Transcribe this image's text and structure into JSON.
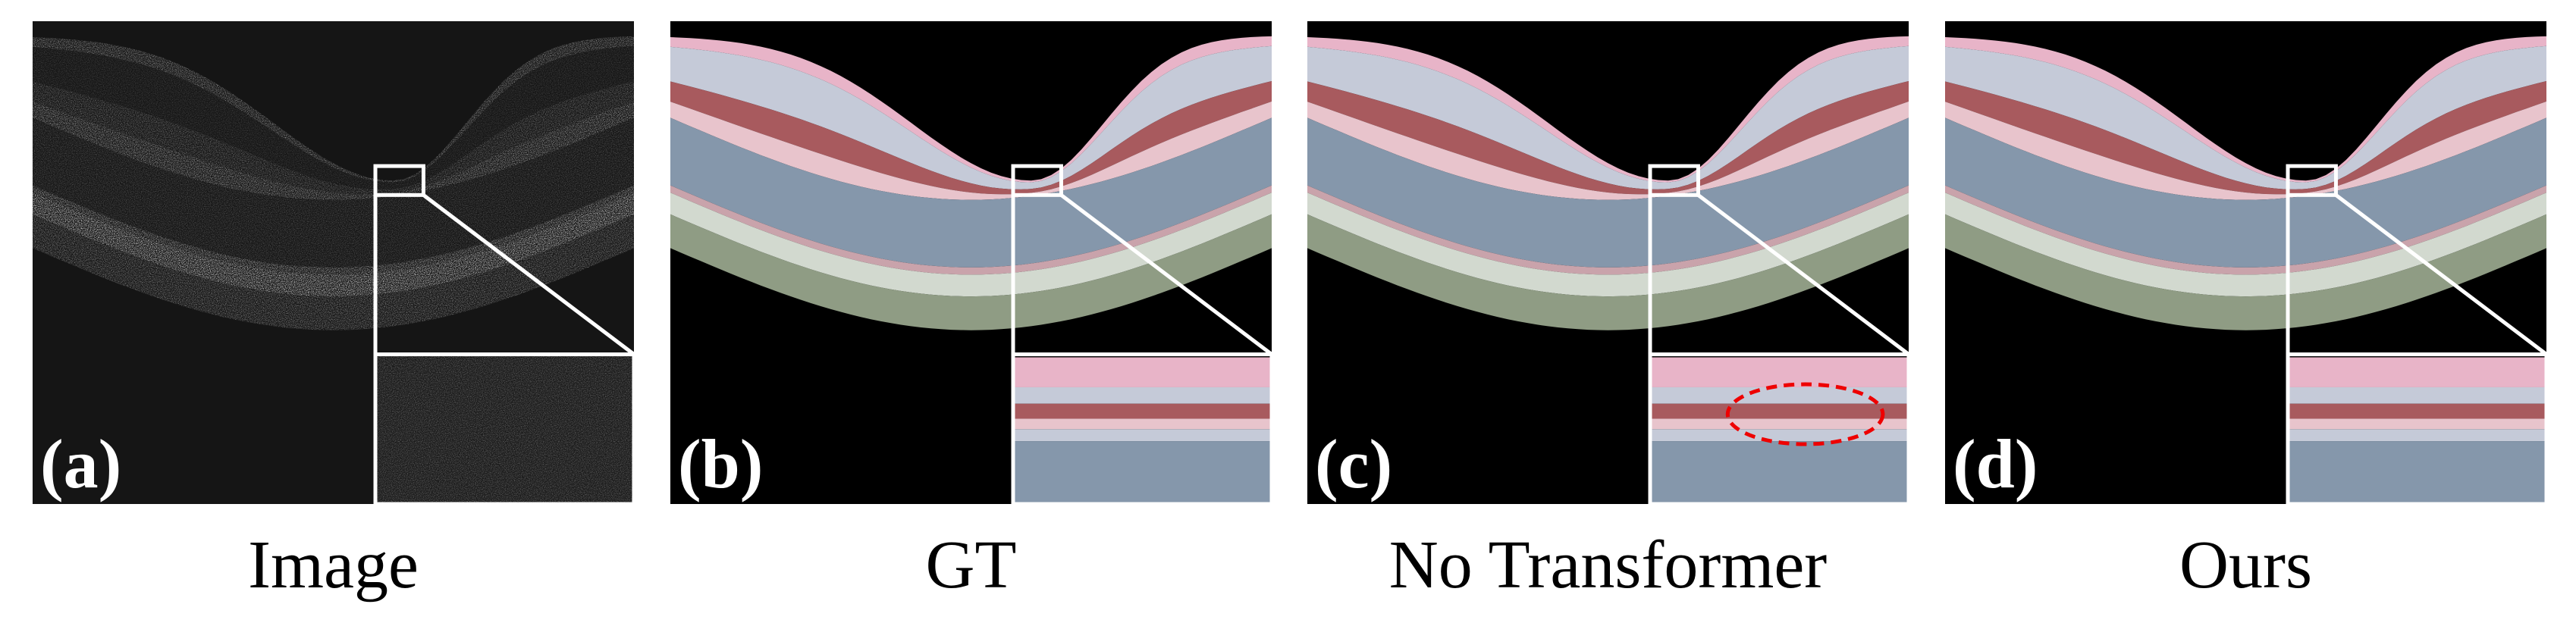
{
  "panels": [
    {
      "label": "(a)",
      "caption": "Image"
    },
    {
      "label": "(b)",
      "caption": "GT"
    },
    {
      "label": "(c)",
      "caption": "No Transformer"
    },
    {
      "label": "(d)",
      "caption": "Ours"
    }
  ]
}
